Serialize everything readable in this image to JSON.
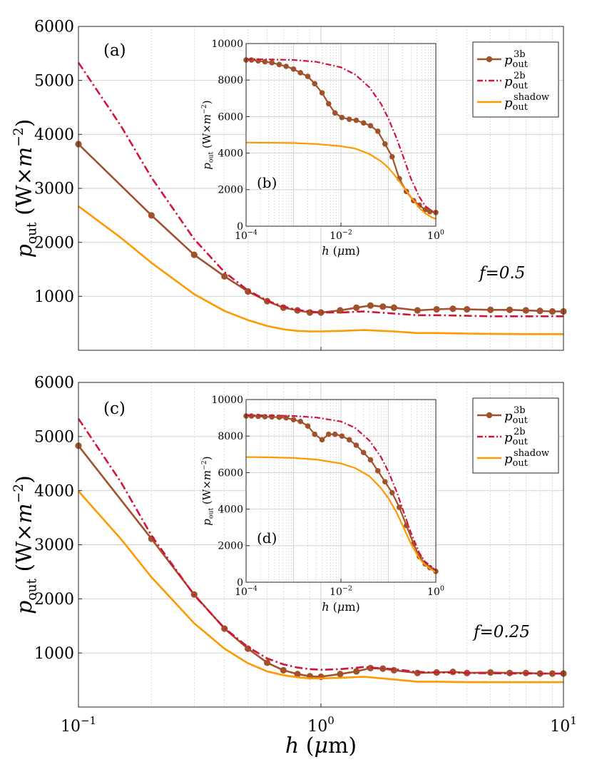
{
  "figure": {
    "shared_xlabel": "h (μm)",
    "colors": {
      "three_body": "#A0522D",
      "two_body": "#D2143A",
      "shadow": "#FF9900",
      "grid": "#cfcfcf"
    }
  },
  "chart_data": [
    {
      "id": "a",
      "type": "line",
      "panel_label": "(a)",
      "annotation": "f=0.5",
      "xscale": "log",
      "xlim": [
        0.1,
        10
      ],
      "ylim": [
        0,
        6000
      ],
      "xlabel": "h (μm)",
      "ylabel": "p_out (W×m^-2)",
      "xticks": [
        {
          "v": 0.1,
          "base": "10",
          "exp": "−1"
        },
        {
          "v": 1,
          "base": "10",
          "exp": "0"
        },
        {
          "v": 10,
          "base": "10",
          "exp": "1"
        }
      ],
      "yticks": [
        {
          "v": 1000,
          "label": "1000"
        },
        {
          "v": 2000,
          "label": "2000"
        },
        {
          "v": 3000,
          "label": "3000"
        },
        {
          "v": 4000,
          "label": "4000"
        },
        {
          "v": 5000,
          "label": "5000"
        },
        {
          "v": 6000,
          "label": "6000"
        }
      ],
      "series": [
        {
          "name": "p_out^3b",
          "style": "line-markers",
          "color": "#A0522D",
          "x": [
            0.1,
            0.2,
            0.3,
            0.4,
            0.5,
            0.6,
            0.7,
            0.8,
            0.9,
            1.0,
            1.2,
            1.4,
            1.6,
            1.8,
            2.0,
            2.5,
            3.0,
            3.5,
            4.0,
            5.0,
            6.0,
            7.0,
            8.0,
            9.0,
            10.0
          ],
          "y": [
            3820,
            2500,
            1770,
            1370,
            1090,
            910,
            790,
            740,
            700,
            700,
            740,
            790,
            830,
            810,
            790,
            740,
            760,
            770,
            760,
            750,
            750,
            740,
            730,
            720,
            720
          ]
        },
        {
          "name": "p_out^2b",
          "style": "dash-dot",
          "color": "#D2143A",
          "x": [
            0.1,
            0.15,
            0.2,
            0.3,
            0.4,
            0.5,
            0.6,
            0.7,
            0.8,
            0.9,
            1.0,
            1.2,
            1.5,
            2.0,
            2.5,
            3.0,
            4.0,
            5.0,
            7.0,
            10.0
          ],
          "y": [
            5330,
            4150,
            3200,
            2060,
            1450,
            1110,
            920,
            810,
            750,
            720,
            700,
            700,
            720,
            680,
            650,
            650,
            640,
            630,
            630,
            630
          ]
        },
        {
          "name": "p_out^shadow",
          "style": "solid",
          "color": "#FF9900",
          "x": [
            0.1,
            0.15,
            0.2,
            0.3,
            0.4,
            0.5,
            0.6,
            0.7,
            0.8,
            0.9,
            1.0,
            1.2,
            1.5,
            2.0,
            2.5,
            3.0,
            4.0,
            5.0,
            7.0,
            10.0
          ],
          "y": [
            2670,
            2080,
            1620,
            1040,
            730,
            560,
            450,
            390,
            360,
            350,
            350,
            360,
            375,
            350,
            320,
            320,
            310,
            305,
            300,
            300
          ]
        }
      ]
    },
    {
      "id": "b",
      "type": "line",
      "panel_label": "(b)",
      "xscale": "log",
      "xlim": [
        0.0001,
        1
      ],
      "ylim": [
        0,
        10000
      ],
      "xlabel": "h (μm)",
      "ylabel": "p_out (W×m^-2)",
      "xticks": [
        {
          "v": 0.0001,
          "base": "10",
          "exp": "−4"
        },
        {
          "v": 0.01,
          "base": "10",
          "exp": "−2"
        },
        {
          "v": 1,
          "base": "10",
          "exp": "0"
        }
      ],
      "yticks": [
        {
          "v": 0,
          "label": "0"
        },
        {
          "v": 2000,
          "label": "2000"
        },
        {
          "v": 4000,
          "label": "4000"
        },
        {
          "v": 6000,
          "label": "6000"
        },
        {
          "v": 8000,
          "label": "8000"
        },
        {
          "v": 10000,
          "label": "10000"
        }
      ],
      "legend": [
        "p_out^3b",
        "p_out^2b",
        "p_out^shadow"
      ],
      "series": [
        {
          "name": "p_out^3b",
          "style": "line-markers",
          "color": "#A0522D",
          "x": [
            0.0001,
            0.00013,
            0.00018,
            0.00025,
            0.00035,
            0.0005,
            0.0007,
            0.001,
            0.0014,
            0.002,
            0.0028,
            0.004,
            0.0055,
            0.0075,
            0.0105,
            0.015,
            0.021,
            0.03,
            0.042,
            0.06,
            0.085,
            0.12,
            0.17,
            0.24,
            0.34,
            0.45,
            0.6,
            0.75,
            1.0
          ],
          "y": [
            9100,
            9100,
            9050,
            9000,
            8950,
            8850,
            8750,
            8600,
            8400,
            8200,
            7800,
            7300,
            6700,
            6200,
            5950,
            5850,
            5800,
            5650,
            5500,
            5200,
            4500,
            3800,
            2600,
            1900,
            1400,
            1150,
            900,
            800,
            750
          ]
        },
        {
          "name": "p_out^2b",
          "style": "dash-dot",
          "color": "#D2143A",
          "x": [
            0.0001,
            0.0003,
            0.001,
            0.003,
            0.01,
            0.02,
            0.04,
            0.07,
            0.1,
            0.15,
            0.2,
            0.3,
            0.45,
            0.6,
            0.8,
            1.0
          ],
          "y": [
            9150,
            9130,
            9100,
            9000,
            8700,
            8300,
            7600,
            6700,
            5900,
            4800,
            3900,
            2600,
            1600,
            1100,
            850,
            720
          ]
        },
        {
          "name": "p_out^shadow",
          "style": "solid",
          "color": "#FF9900",
          "x": [
            0.0001,
            0.0003,
            0.001,
            0.003,
            0.01,
            0.02,
            0.04,
            0.07,
            0.1,
            0.15,
            0.2,
            0.3,
            0.45,
            0.6,
            0.8,
            1.0
          ],
          "y": [
            4580,
            4570,
            4550,
            4500,
            4380,
            4250,
            3950,
            3550,
            3200,
            2650,
            2200,
            1600,
            1000,
            700,
            500,
            400
          ]
        }
      ]
    },
    {
      "id": "c",
      "type": "line",
      "panel_label": "(c)",
      "annotation": "f=0.25",
      "xscale": "log",
      "xlim": [
        0.1,
        10
      ],
      "ylim": [
        0,
        6000
      ],
      "xlabel": "h (μm)",
      "ylabel": "p_out (W×m^-2)",
      "xticks": [
        {
          "v": 0.1,
          "base": "10",
          "exp": "−1"
        },
        {
          "v": 1,
          "base": "10",
          "exp": "0"
        },
        {
          "v": 10,
          "base": "10",
          "exp": "1"
        }
      ],
      "yticks": [
        {
          "v": 1000,
          "label": "1000"
        },
        {
          "v": 2000,
          "label": "2000"
        },
        {
          "v": 3000,
          "label": "3000"
        },
        {
          "v": 4000,
          "label": "4000"
        },
        {
          "v": 5000,
          "label": "5000"
        },
        {
          "v": 6000,
          "label": "6000"
        }
      ],
      "series": [
        {
          "name": "p_out^3b",
          "style": "line-markers",
          "color": "#A0522D",
          "x": [
            0.1,
            0.2,
            0.3,
            0.4,
            0.5,
            0.6,
            0.7,
            0.8,
            0.9,
            1.0,
            1.2,
            1.4,
            1.6,
            1.8,
            2.0,
            2.5,
            3.0,
            3.5,
            4.0,
            5.0,
            6.0,
            7.0,
            8.0,
            9.0,
            10.0
          ],
          "y": [
            4830,
            3110,
            2080,
            1450,
            1080,
            820,
            680,
            610,
            570,
            560,
            610,
            660,
            720,
            710,
            680,
            630,
            640,
            650,
            630,
            640,
            630,
            630,
            620,
            620,
            620
          ]
        },
        {
          "name": "p_out^2b",
          "style": "dash-dot",
          "color": "#D2143A",
          "x": [
            0.1,
            0.15,
            0.2,
            0.3,
            0.4,
            0.5,
            0.6,
            0.7,
            0.8,
            0.9,
            1.0,
            1.2,
            1.5,
            2.0,
            2.5,
            3.0,
            4.0,
            5.0,
            7.0,
            10.0
          ],
          "y": [
            5330,
            4150,
            3170,
            2070,
            1460,
            1110,
            900,
            790,
            730,
            700,
            690,
            700,
            740,
            700,
            650,
            640,
            630,
            625,
            620,
            620
          ]
        },
        {
          "name": "p_out^shadow",
          "style": "solid",
          "color": "#FF9900",
          "x": [
            0.1,
            0.15,
            0.2,
            0.3,
            0.4,
            0.5,
            0.6,
            0.7,
            0.8,
            0.9,
            1.0,
            1.2,
            1.5,
            2.0,
            2.5,
            3.0,
            4.0,
            5.0,
            7.0,
            10.0
          ],
          "y": [
            3990,
            3100,
            2400,
            1550,
            1080,
            810,
            660,
            590,
            550,
            530,
            530,
            540,
            560,
            510,
            470,
            470,
            460,
            460,
            460,
            460
          ]
        }
      ]
    },
    {
      "id": "d",
      "type": "line",
      "panel_label": "(d)",
      "xscale": "log",
      "xlim": [
        0.0001,
        1
      ],
      "ylim": [
        0,
        10000
      ],
      "xlabel": "h (μm)",
      "ylabel": "p_out (W×m^-2)",
      "xticks": [
        {
          "v": 0.0001,
          "base": "10",
          "exp": "−4"
        },
        {
          "v": 0.01,
          "base": "10",
          "exp": "−2"
        },
        {
          "v": 1,
          "base": "10",
          "exp": "0"
        }
      ],
      "yticks": [
        {
          "v": 0,
          "label": "0"
        },
        {
          "v": 2000,
          "label": "2000"
        },
        {
          "v": 4000,
          "label": "4000"
        },
        {
          "v": 6000,
          "label": "6000"
        },
        {
          "v": 8000,
          "label": "8000"
        },
        {
          "v": 10000,
          "label": "10000"
        }
      ],
      "legend": [
        "p_out^3b",
        "p_out^2b",
        "p_out^shadow"
      ],
      "series": [
        {
          "name": "p_out^3b",
          "style": "line-markers",
          "color": "#A0522D",
          "x": [
            0.0001,
            0.00013,
            0.00018,
            0.00025,
            0.00035,
            0.0005,
            0.0007,
            0.001,
            0.0014,
            0.002,
            0.0028,
            0.004,
            0.0055,
            0.0075,
            0.0105,
            0.015,
            0.021,
            0.03,
            0.042,
            0.06,
            0.085,
            0.12,
            0.17,
            0.24,
            0.34,
            0.45,
            0.6,
            0.75,
            1.0
          ],
          "y": [
            9100,
            9100,
            9080,
            9060,
            9050,
            9030,
            9000,
            8900,
            8800,
            8550,
            8100,
            7800,
            8100,
            8100,
            8000,
            7800,
            7500,
            7100,
            6700,
            6100,
            5500,
            4900,
            4100,
            3100,
            2100,
            1400,
            1000,
            800,
            600
          ]
        },
        {
          "name": "p_out^2b",
          "style": "dash-dot",
          "color": "#D2143A",
          "x": [
            0.0001,
            0.0003,
            0.001,
            0.003,
            0.01,
            0.02,
            0.04,
            0.07,
            0.1,
            0.15,
            0.2,
            0.3,
            0.45,
            0.6,
            0.8,
            1.0
          ],
          "y": [
            9150,
            9130,
            9100,
            9020,
            8800,
            8450,
            7750,
            6850,
            6050,
            4950,
            4000,
            2700,
            1600,
            1100,
            850,
            650
          ]
        },
        {
          "name": "p_out^shadow",
          "style": "solid",
          "color": "#FF9900",
          "x": [
            0.0001,
            0.0003,
            0.001,
            0.003,
            0.01,
            0.02,
            0.04,
            0.07,
            0.1,
            0.15,
            0.2,
            0.3,
            0.45,
            0.6,
            0.8,
            1.0
          ],
          "y": [
            6850,
            6840,
            6800,
            6720,
            6500,
            6250,
            5800,
            5150,
            4600,
            3800,
            3100,
            2100,
            1300,
            950,
            700,
            550
          ]
        }
      ]
    }
  ]
}
